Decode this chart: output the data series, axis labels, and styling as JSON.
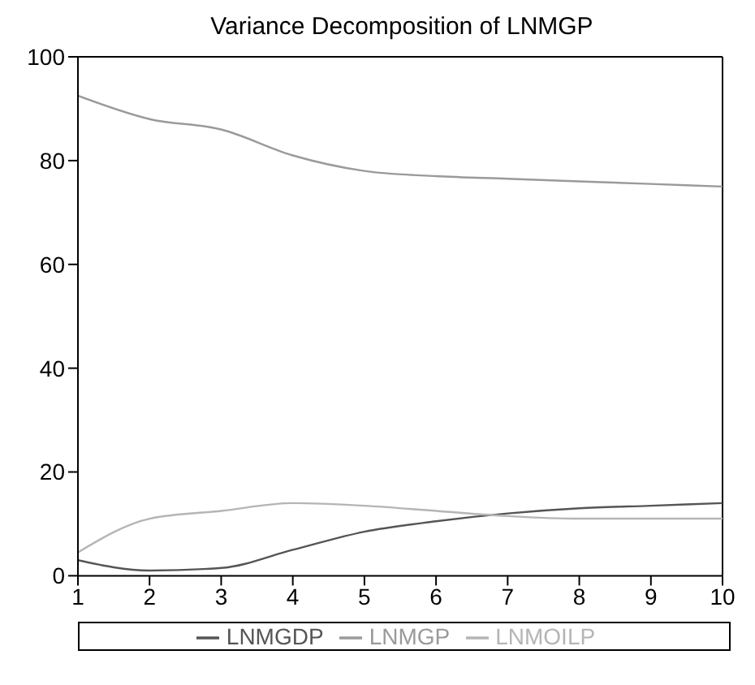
{
  "chart_data": {
    "type": "line",
    "title": "Variance Decomposition of LNMGP",
    "x": [
      1,
      2,
      3,
      4,
      5,
      6,
      7,
      8,
      9,
      10
    ],
    "series": [
      {
        "name": "LNMGDP",
        "color": "#555555",
        "values": [
          3,
          1,
          1.5,
          5,
          8.5,
          10.5,
          12,
          13,
          13.5,
          14
        ]
      },
      {
        "name": "LNMGP",
        "color": "#9a9a9a",
        "values": [
          92.5,
          88,
          86,
          81,
          78,
          77,
          76.5,
          76,
          75.5,
          75
        ]
      },
      {
        "name": "LNMOILP",
        "color": "#b5b5b5",
        "values": [
          4.5,
          11,
          12.5,
          14,
          13.5,
          12.5,
          11.5,
          11,
          11,
          11
        ]
      }
    ],
    "xlim": [
      1,
      10
    ],
    "xticks": [
      1,
      2,
      3,
      4,
      5,
      6,
      7,
      8,
      9,
      10
    ],
    "ylim": [
      0,
      100
    ],
    "yticks": [
      0,
      20,
      40,
      60,
      80,
      100
    ],
    "grid": false,
    "legend": "bottom",
    "marker": "none",
    "line_style": "solid"
  }
}
